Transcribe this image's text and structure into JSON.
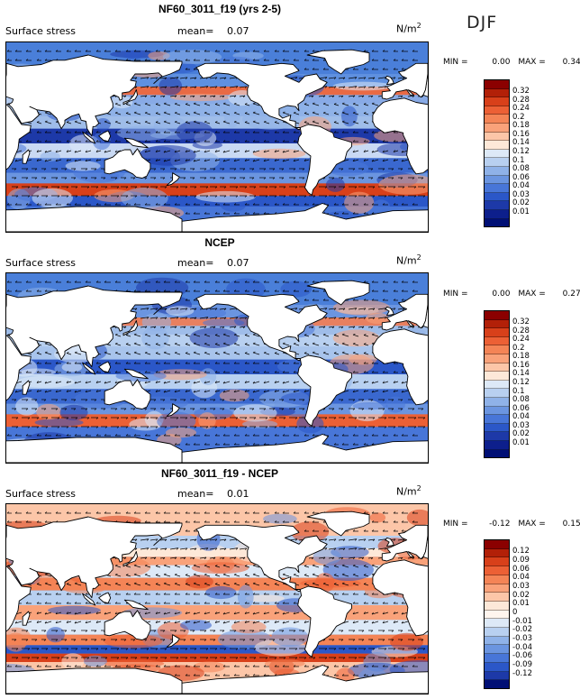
{
  "season": "DJF",
  "panels": [
    {
      "title": "NF60_3011_f19 (yrs 2-5)",
      "subtitle": "Surface stress",
      "mean_label": "mean=",
      "mean_value": "0.07",
      "units_base": "N/m",
      "units_exp": "2",
      "min_label": "MIN =",
      "min_value": "0.00",
      "max_label": "MAX =",
      "max_value": "0.34",
      "scale": "stress",
      "colorbar": {
        "colors": [
          "#8b0000",
          "#b22008",
          "#d8401a",
          "#ec6035",
          "#f48456",
          "#f9a27a",
          "#fcc6a8",
          "#fde8d8",
          "#dde9f7",
          "#b8d0f0",
          "#8fb2e8",
          "#6b95e0",
          "#4876d8",
          "#2b57c8",
          "#1d39a8",
          "#0d1f8c",
          "#000f75"
        ],
        "labels": [
          "0.32",
          "0.28",
          "0.24",
          "0.2",
          "0.18",
          "0.16",
          "0.14",
          "0.12",
          "0.1",
          "0.08",
          "0.06",
          "0.04",
          "0.03",
          "0.02",
          "0.01"
        ]
      }
    },
    {
      "title": "NCEP",
      "subtitle": "Surface stress",
      "mean_label": "mean=",
      "mean_value": "0.07",
      "units_base": "N/m",
      "units_exp": "2",
      "min_label": "MIN =",
      "min_value": "0.00",
      "max_label": "MAX =",
      "max_value": "0.27",
      "scale": "stress",
      "colorbar": {
        "colors": [
          "#8b0000",
          "#b22008",
          "#d8401a",
          "#ec6035",
          "#f48456",
          "#f9a27a",
          "#fcc6a8",
          "#fde8d8",
          "#dde9f7",
          "#b8d0f0",
          "#8fb2e8",
          "#6b95e0",
          "#4876d8",
          "#2b57c8",
          "#1d39a8",
          "#0d1f8c",
          "#000f75"
        ],
        "labels": [
          "0.32",
          "0.28",
          "0.24",
          "0.2",
          "0.18",
          "0.16",
          "0.14",
          "0.12",
          "0.1",
          "0.08",
          "0.06",
          "0.04",
          "0.03",
          "0.02",
          "0.01"
        ]
      }
    },
    {
      "title": "NF60_3011_f19 - NCEP",
      "subtitle": "Surface stress",
      "mean_label": "mean=",
      "mean_value": "0.01",
      "units_base": "N/m",
      "units_exp": "2",
      "min_label": "MIN =",
      "min_value": "-0.12",
      "max_label": "MAX =",
      "max_value": "0.15",
      "scale": "diff",
      "colorbar": {
        "colors": [
          "#8b0000",
          "#b22008",
          "#d8401a",
          "#ec6035",
          "#f48456",
          "#f9a27a",
          "#fcc6a8",
          "#fde8d8",
          "#fff5ee",
          "#dde9f7",
          "#b8d0f0",
          "#8fb2e8",
          "#6b95e0",
          "#4876d8",
          "#2b57c8",
          "#1d39a8",
          "#000f75"
        ],
        "labels": [
          "0.12",
          "0.09",
          "0.06",
          "0.04",
          "0.03",
          "0.02",
          "0.01",
          "0",
          "-0.01",
          "-0.02",
          "-0.03",
          "-0.04",
          "-0.06",
          "-0.09",
          "-0.12"
        ]
      }
    }
  ]
}
